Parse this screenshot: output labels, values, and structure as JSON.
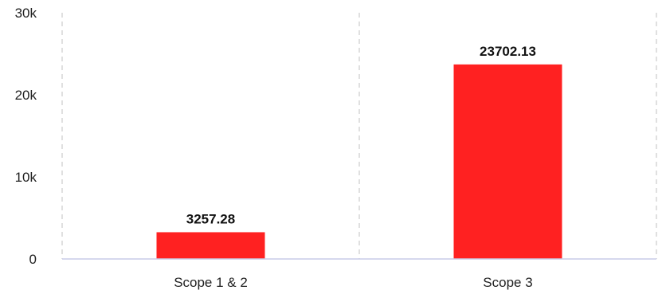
{
  "chart_data": {
    "type": "bar",
    "categories": [
      "Scope 1 & 2",
      "Scope 3"
    ],
    "values": [
      3257.28,
      23702.13
    ],
    "data_labels": [
      "3257.28",
      "23702.13"
    ],
    "ylim": [
      0,
      30000
    ],
    "yticks": [
      {
        "value": 0,
        "label": "0"
      },
      {
        "value": 10000,
        "label": "10k"
      },
      {
        "value": 20000,
        "label": "20k"
      },
      {
        "value": 30000,
        "label": "30k"
      }
    ],
    "title": "",
    "xlabel": "",
    "ylabel": "",
    "grid": "vertical dashed",
    "legend": "none",
    "colors": {
      "bar": "#ff2121",
      "grid": "#cccccc",
      "axis": "#c8cce8"
    }
  }
}
